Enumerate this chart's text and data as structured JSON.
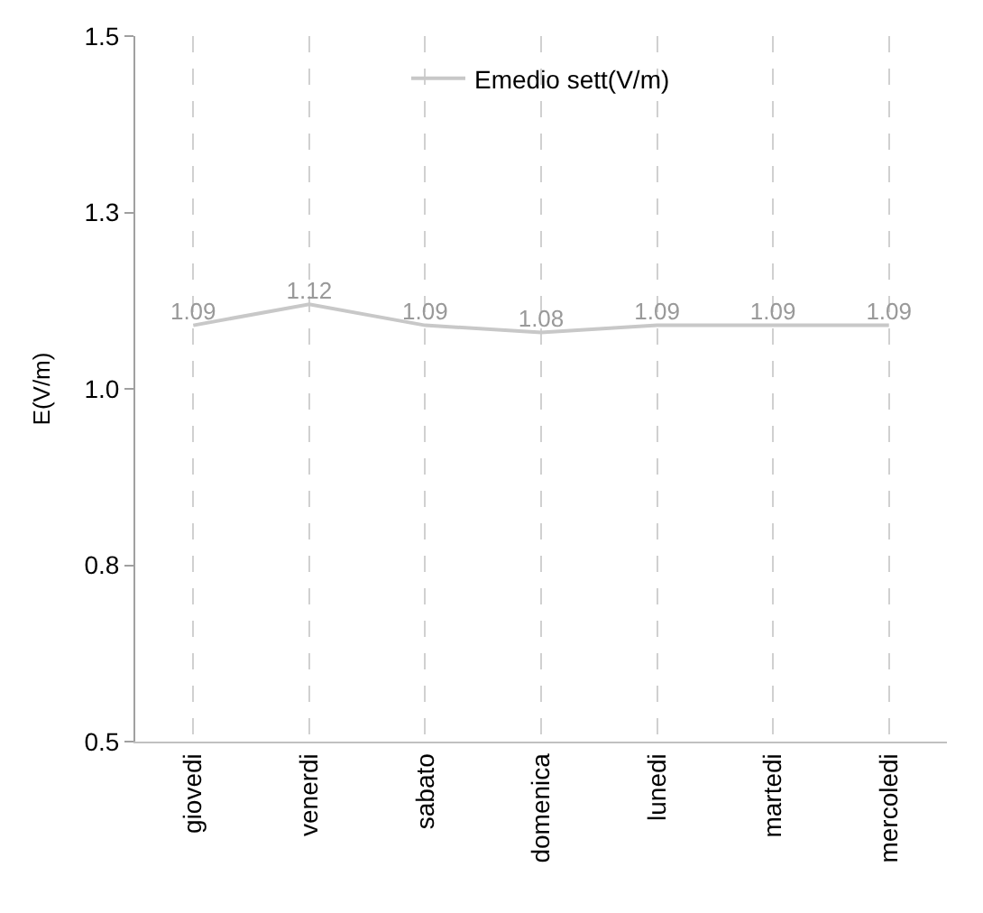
{
  "chart_data": {
    "type": "line",
    "ylabel": "E(V/m)",
    "categories": [
      "giovedi",
      "venerdi",
      "sabato",
      "domenica",
      "lunedi",
      "martedi",
      "mercoledi"
    ],
    "series": [
      {
        "name": "Emedio sett(V/m)",
        "color": "#c8c8c8",
        "values": [
          1.09,
          1.12,
          1.09,
          1.08,
          1.09,
          1.09,
          1.09
        ]
      }
    ],
    "ylim": [
      0.5,
      1.5
    ],
    "yticks": [
      0.5,
      {
        "value": 0.75,
        "label": "0.8"
      },
      {
        "value": 1.0,
        "label": "1.0"
      },
      {
        "value": 1.25,
        "label": "1.3"
      },
      1.5
    ],
    "grid": "x",
    "legend": "top",
    "data_labels": true,
    "marker": "none",
    "line_style": "solid"
  }
}
